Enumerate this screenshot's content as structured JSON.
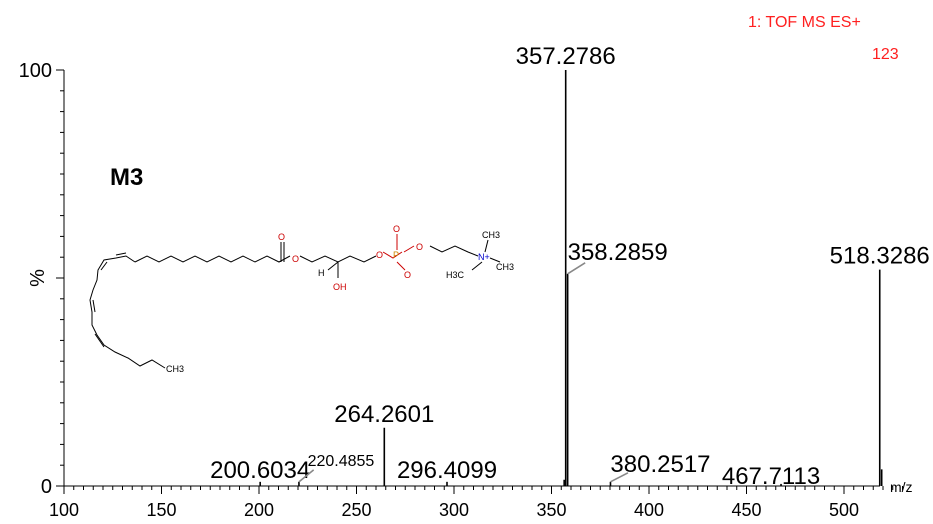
{
  "instrument": {
    "label": "1: TOF MS ES+",
    "count": "123",
    "color": "#ff2020"
  },
  "compound_label": "M3",
  "structure": {
    "atom_labels": [
      "O",
      "O",
      "O",
      "O",
      "P",
      "O",
      "O",
      "O",
      "H",
      "OH",
      "N+",
      "CH3",
      "CH3",
      "H3C",
      "CH3"
    ]
  },
  "chart_data": {
    "type": "bar",
    "title": "",
    "xlabel": "m/z",
    "ylabel": "%",
    "xlim": [
      100,
      530
    ],
    "ylim": [
      0,
      100
    ],
    "x_ticks": [
      100,
      150,
      200,
      250,
      300,
      350,
      400,
      450,
      500
    ],
    "y_ticks": [
      {
        "value": 0,
        "label": "0"
      },
      {
        "value": 50,
        "label": "%"
      },
      {
        "value": 100,
        "label": "100"
      }
    ],
    "peaks": [
      {
        "mz": 357.2786,
        "intensity": 100,
        "label": "357.2786"
      },
      {
        "mz": 358.2859,
        "intensity": 51,
        "label": "358.2859"
      },
      {
        "mz": 518.3286,
        "intensity": 52,
        "label": "518.3286"
      },
      {
        "mz": 264.2601,
        "intensity": 14,
        "label": "264.2601"
      },
      {
        "mz": 200.6034,
        "intensity": 1,
        "label": "200.6034"
      },
      {
        "mz": 220.4855,
        "intensity": 1,
        "label": "220.4855"
      },
      {
        "mz": 296.4099,
        "intensity": 1,
        "label": "296.4099"
      },
      {
        "mz": 380.2517,
        "intensity": 1,
        "label": "380.2517"
      },
      {
        "mz": 467.7113,
        "intensity": 0.5,
        "label": "467.7113"
      },
      {
        "mz": 519.33,
        "intensity": 4,
        "label": ""
      },
      {
        "mz": 356.5,
        "intensity": 1.5,
        "label": ""
      }
    ]
  }
}
